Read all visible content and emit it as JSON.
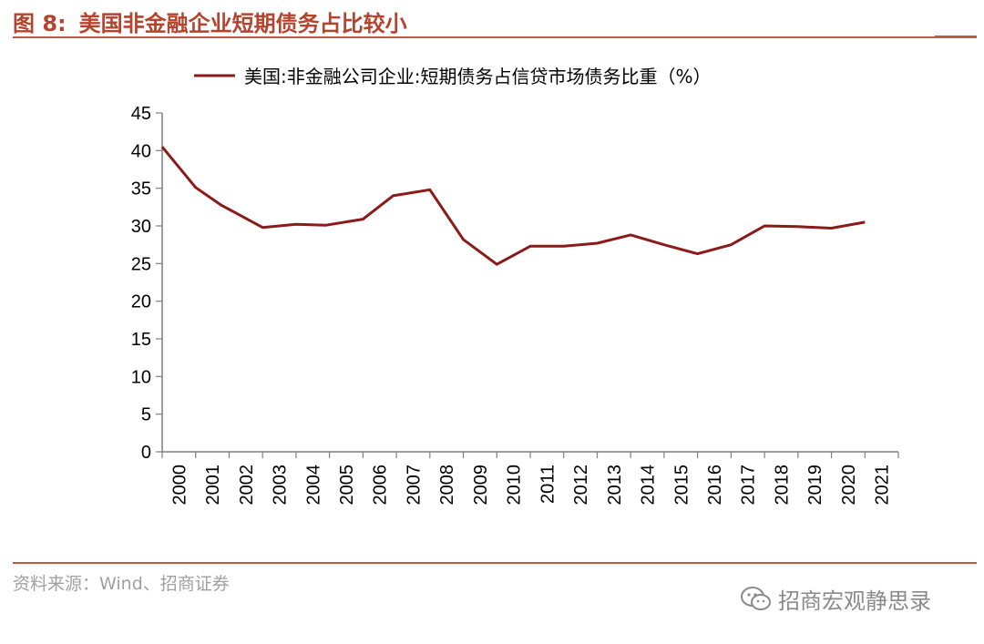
{
  "header": {
    "figure_number": "图 8:",
    "figure_title": "美国非金融企业短期债务占比较小"
  },
  "source": "资料来源：Wind、招商证券",
  "watermark": {
    "icon": "wechat-icon",
    "text": "招商宏观静思录"
  },
  "colors": {
    "accent": "#c0583f",
    "series_line": "#8b1a1a"
  },
  "chart_data": {
    "type": "line",
    "title": "",
    "xlabel": "",
    "ylabel": "",
    "ylim": [
      0,
      45
    ],
    "yticks": [
      "0",
      "5",
      "10",
      "15",
      "20",
      "25",
      "30",
      "35",
      "40",
      "45"
    ],
    "categories": [
      "2000",
      "2001",
      "2002",
      "2003",
      "2004",
      "2005",
      "2006",
      "2007",
      "2008",
      "2009",
      "2010",
      "2011",
      "2012",
      "2013",
      "2014",
      "2015",
      "2016",
      "2017",
      "2018",
      "2019",
      "2020",
      "2021"
    ],
    "legend_position": "top-center",
    "grid": false,
    "series": [
      {
        "name": "美国:非金融公司企业:短期债务占信贷市场债务比重（%）",
        "x": [
          2000.0,
          2001.0,
          2001.75,
          2003.0,
          2004.0,
          2004.9,
          2006.0,
          2006.9,
          2008.0,
          2009.0,
          2010.0,
          2011.0,
          2012.0,
          2013.0,
          2014.0,
          2015.0,
          2016.0,
          2017.0,
          2018.0,
          2019.0,
          2020.0,
          2021.0
        ],
        "values": [
          40.5,
          35.1,
          32.8,
          29.8,
          30.2,
          30.1,
          30.9,
          34.0,
          34.8,
          28.2,
          24.9,
          27.3,
          27.3,
          27.7,
          28.8,
          27.5,
          26.3,
          27.5,
          30.0,
          29.9,
          29.7,
          30.5
        ]
      }
    ]
  }
}
